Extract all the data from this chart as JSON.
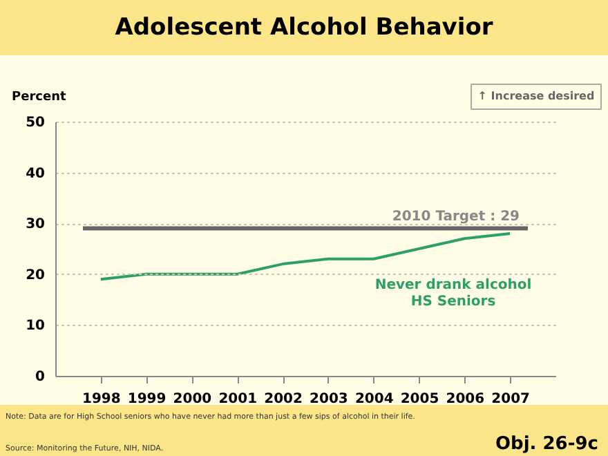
{
  "chart_data": {
    "type": "line",
    "title": "Adolescent Alcohol Behavior",
    "ylabel": "Percent",
    "categories": [
      "1998",
      "1999",
      "2000",
      "2001",
      "2002",
      "2003",
      "2004",
      "2005",
      "2006",
      "2007"
    ],
    "series": [
      {
        "name": "Never drank alcohol\nHS Seniors",
        "color": "#2e9e6a",
        "values": [
          19,
          20,
          20,
          20,
          22,
          23,
          23,
          25,
          27,
          28
        ]
      }
    ],
    "ylim": [
      0,
      50
    ],
    "yticks": [
      0,
      10,
      20,
      30,
      40,
      50
    ],
    "grid": "y",
    "marker": "none",
    "line_style": "solid",
    "legend": false,
    "ref_lines": [
      {
        "axis": "y",
        "value": 29,
        "label": "2010 Target : 29",
        "color": "#666666"
      }
    ],
    "annotations": [
      "↑ Increase desired",
      "Note: Data are for High School seniors who have never had more than just a few sips of alcohol in their life.",
      "Source: Monitoring the Future, NIH, NIDA.",
      "Obj. 26-9c"
    ]
  }
}
